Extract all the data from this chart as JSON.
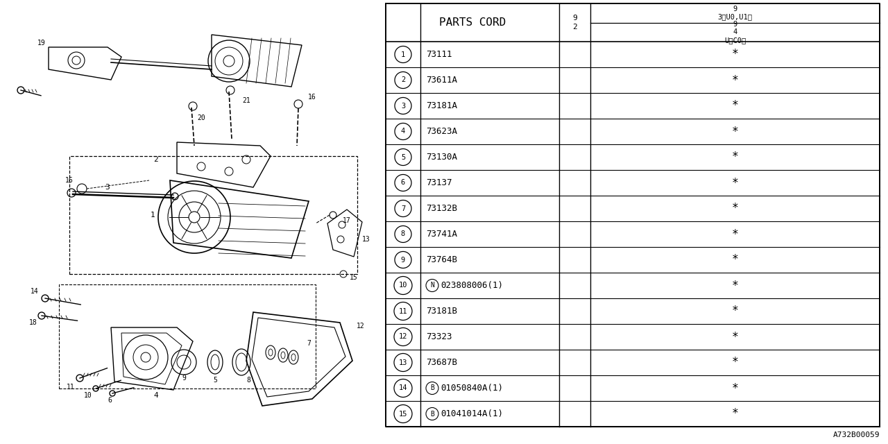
{
  "bg_color": "#ffffff",
  "table_header": "PARTS CORD",
  "rows": [
    {
      "num": "1",
      "code": "73111",
      "star": "*",
      "prefix": ""
    },
    {
      "num": "2",
      "code": "73611A",
      "star": "*",
      "prefix": ""
    },
    {
      "num": "3",
      "code": "73181A",
      "star": "*",
      "prefix": ""
    },
    {
      "num": "4",
      "code": "73623A",
      "star": "*",
      "prefix": ""
    },
    {
      "num": "5",
      "code": "73130A",
      "star": "*",
      "prefix": ""
    },
    {
      "num": "6",
      "code": "73137",
      "star": "*",
      "prefix": ""
    },
    {
      "num": "7",
      "code": "73132B",
      "star": "*",
      "prefix": ""
    },
    {
      "num": "8",
      "code": "73741A",
      "star": "*",
      "prefix": ""
    },
    {
      "num": "9",
      "code": "73764B",
      "star": "*",
      "prefix": ""
    },
    {
      "num": "10",
      "code": "023808006(1)",
      "star": "*",
      "prefix": "N"
    },
    {
      "num": "11",
      "code": "73181B",
      "star": "*",
      "prefix": ""
    },
    {
      "num": "12",
      "code": "73323",
      "star": "*",
      "prefix": ""
    },
    {
      "num": "13",
      "code": "73687B",
      "star": "*",
      "prefix": ""
    },
    {
      "num": "14",
      "code": "01050840A(1)",
      "star": "*",
      "prefix": "B"
    },
    {
      "num": "15",
      "code": "01041014A(1)",
      "star": "*",
      "prefix": "B"
    }
  ],
  "diagram_ref": "A732B00059",
  "lc": "#000000"
}
